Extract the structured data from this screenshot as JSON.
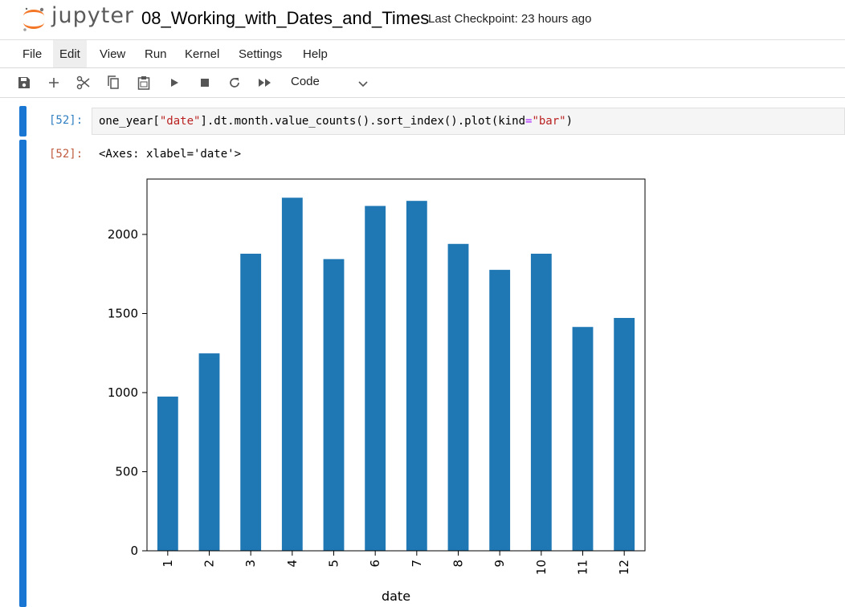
{
  "header": {
    "brand": "jupyter",
    "notebook_title": "08_Working_with_Dates_and_Times",
    "checkpoint": "Last Checkpoint: 23 hours ago"
  },
  "menu": [
    "File",
    "Edit",
    "View",
    "Run",
    "Kernel",
    "Settings",
    "Help"
  ],
  "toolbar": {
    "icons": [
      "save-icon",
      "add-cell-icon",
      "cut-icon",
      "copy-icon",
      "paste-icon",
      "run-icon",
      "stop-icon",
      "restart-icon",
      "run-all-icon"
    ],
    "cell_type": "Code"
  },
  "cell": {
    "in_prompt": "[52]:",
    "code_parts": {
      "p1": "one_year[",
      "s1": "\"date\"",
      "p2": "].dt.month.value_counts().sort_index().plot(kind",
      "op": "=",
      "s2": "\"bar\"",
      "p3": ")"
    },
    "out_prompt": "[52]:",
    "output_text": "<Axes: xlabel='date'>"
  },
  "colors": {
    "accent": "#1976d2",
    "bar": "#1f77b4",
    "in_prompt": "#307fc1",
    "out_prompt": "#bf5b3d",
    "logo": "#f37726"
  },
  "chart_data": {
    "type": "bar",
    "categories": [
      "1",
      "2",
      "3",
      "4",
      "5",
      "6",
      "7",
      "8",
      "9",
      "10",
      "11",
      "12"
    ],
    "values": [
      975,
      1248,
      1878,
      2232,
      1844,
      2180,
      2212,
      1940,
      1776,
      1878,
      1415,
      1472
    ],
    "xlabel": "date",
    "ylabel": "",
    "ylim": [
      0,
      2350
    ],
    "yticks": [
      0,
      500,
      1000,
      1500,
      2000
    ],
    "grid": false
  }
}
